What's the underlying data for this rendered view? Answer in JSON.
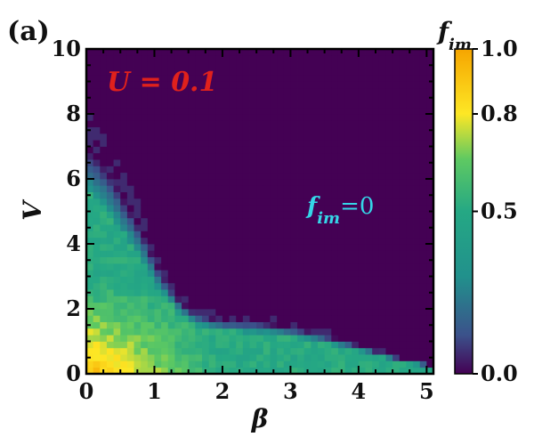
{
  "chart_data": {
    "type": "heatmap",
    "panel_label": "(a)",
    "xlabel": "β",
    "ylabel": "V",
    "xlim": [
      0,
      5.1
    ],
    "ylim": [
      0,
      10
    ],
    "xticks": [
      "0",
      "1",
      "2",
      "3",
      "4",
      "5"
    ],
    "yticks": [
      "0",
      "2",
      "4",
      "6",
      "8",
      "10"
    ],
    "colorbar": {
      "label": "f",
      "label_subscript": "im",
      "range": [
        0.0,
        1.0
      ],
      "ticks": [
        "0.0",
        "0.5",
        "0.8",
        "1.0"
      ],
      "colormap": "viridis"
    },
    "annotations": {
      "parameter": "U = 0.1",
      "parameter_color": "#e0211c",
      "region_main": "f",
      "region_sub": "im",
      "region_value": "=0",
      "region_color": "#35d6e8"
    },
    "grid": false,
    "boundary_V_max_by_beta": [
      [
        0.0,
        7.0
      ],
      [
        0.2,
        6.6
      ],
      [
        0.4,
        6.0
      ],
      [
        0.6,
        5.2
      ],
      [
        0.8,
        4.5
      ],
      [
        1.0,
        3.5
      ],
      [
        1.2,
        2.8
      ],
      [
        1.4,
        2.2
      ],
      [
        1.6,
        1.9
      ],
      [
        1.8,
        1.75
      ],
      [
        2.0,
        1.65
      ],
      [
        2.5,
        1.6
      ],
      [
        3.0,
        1.45
      ],
      [
        3.5,
        1.2
      ],
      [
        4.0,
        0.9
      ],
      [
        4.5,
        0.55
      ],
      [
        5.0,
        0.3
      ]
    ]
  }
}
